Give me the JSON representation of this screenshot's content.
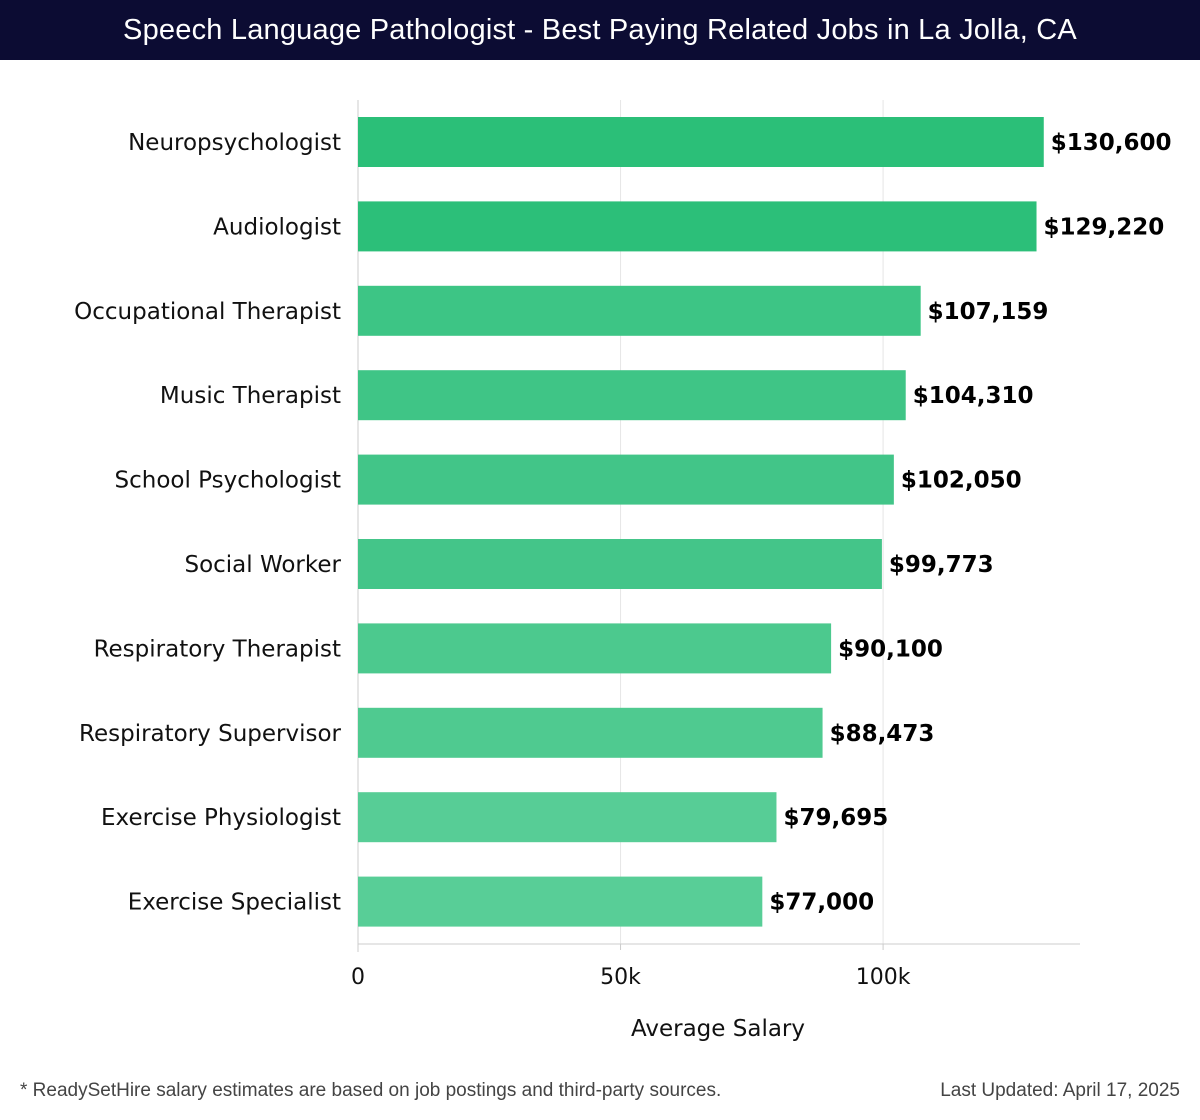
{
  "header": {
    "title": "Speech Language Pathologist - Best Paying Related Jobs in La Jolla, CA"
  },
  "chart_data": {
    "type": "bar",
    "orientation": "horizontal",
    "categories": [
      "Neuropsychologist",
      "Audiologist",
      "Occupational Therapist",
      "Music Therapist",
      "School Psychologist",
      "Social Worker",
      "Respiratory Therapist",
      "Respiratory Supervisor",
      "Exercise Physiologist",
      "Exercise Specialist"
    ],
    "values": [
      130600,
      129220,
      107159,
      104310,
      102050,
      99773,
      90100,
      88473,
      79695,
      77000
    ],
    "value_labels": [
      "$130,600",
      "$129,220",
      "$107,159",
      "$104,310",
      "$102,050",
      "$99,773",
      "$90,100",
      "$88,473",
      "$79,695",
      "$77,000"
    ],
    "bar_colors": [
      "#2bbf78",
      "#2cbf79",
      "#3dc585",
      "#3fc586",
      "#42c588",
      "#44c589",
      "#4cc98e",
      "#4fca90",
      "#57cd96",
      "#58ce97"
    ],
    "xlabel": "Average Salary",
    "ylabel": "",
    "xlim": [
      0,
      137500
    ],
    "x_ticks": [
      0,
      50000,
      100000
    ],
    "x_tick_labels": [
      "0",
      "50k",
      "100k"
    ],
    "grid": "vertical",
    "legend": "none"
  },
  "footer": {
    "note": "* ReadySetHire salary estimates are based on job postings and third-party sources.",
    "updated": "Last Updated: April 17, 2025"
  }
}
